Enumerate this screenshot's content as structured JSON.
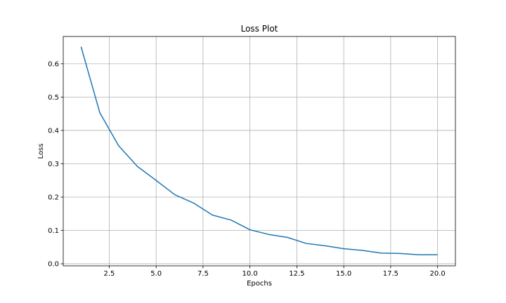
{
  "chart_data": {
    "type": "line",
    "title": "Loss Plot",
    "xlabel": "Epochs",
    "ylabel": "Loss",
    "grid": true,
    "xlim": [
      0.05,
      20.95
    ],
    "ylim": [
      -0.0062,
      0.6818
    ],
    "xticks": [
      2.5,
      5.0,
      7.5,
      10.0,
      12.5,
      15.0,
      17.5,
      20.0
    ],
    "xtick_labels": [
      "2.5",
      "5.0",
      "7.5",
      "10.0",
      "12.5",
      "15.0",
      "17.5",
      "20.0"
    ],
    "yticks": [
      0.0,
      0.1,
      0.2,
      0.3,
      0.4,
      0.5,
      0.6
    ],
    "ytick_labels": [
      "0.0",
      "0.1",
      "0.2",
      "0.3",
      "0.4",
      "0.5",
      "0.6"
    ],
    "series": [
      {
        "color": "#1f77b4",
        "x": [
          1,
          2,
          3,
          4,
          5,
          6,
          7,
          8,
          9,
          10,
          11,
          12,
          13,
          14,
          15,
          16,
          17,
          18,
          19,
          20
        ],
        "y": [
          0.651,
          0.453,
          0.354,
          0.292,
          0.25,
          0.207,
          0.182,
          0.146,
          0.131,
          0.102,
          0.088,
          0.079,
          0.061,
          0.054,
          0.045,
          0.04,
          0.032,
          0.031,
          0.027,
          0.027
        ]
      }
    ]
  }
}
